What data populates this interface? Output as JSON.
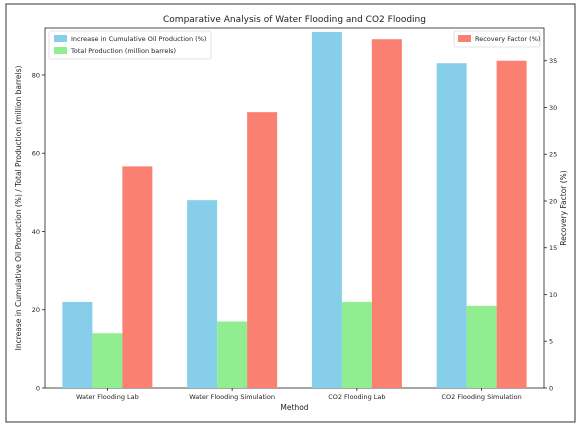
{
  "chart_data": {
    "type": "bar",
    "title": "Comparative Analysis of Water Flooding and CO2 Flooding",
    "xlabel": "Method",
    "ylabel_left": "Increase in Cumulative Oil Production (%) / Total Production (million barrels)",
    "ylabel_right": "Recovery Factor (%)",
    "categories": [
      "Water Flooding Lab",
      "Water Flooding Simulation",
      "CO2 Flooding Lab",
      "CO2 Flooding Simulation"
    ],
    "ylim_left": [
      0,
      92
    ],
    "yticks_left": [
      0,
      20,
      40,
      60,
      80
    ],
    "ylim_right": [
      0,
      38.5
    ],
    "yticks_right": [
      0,
      5,
      10,
      15,
      20,
      25,
      30,
      35
    ],
    "series": [
      {
        "name": "Increase in Cumulative Oil Production (%)",
        "axis": "left",
        "color": "#87ceeb",
        "values": [
          22,
          48,
          91,
          83
        ]
      },
      {
        "name": "Total Production (million barrels)",
        "axis": "left",
        "color": "#90ee90",
        "values": [
          14,
          17,
          22,
          21
        ]
      },
      {
        "name": "Recovery Factor (%)",
        "axis": "right",
        "color": "#fa8072",
        "values": [
          23.7,
          29.5,
          37.3,
          35.0
        ]
      }
    ],
    "legend_left": "top-left",
    "legend_right": "top-right",
    "grid": false
  }
}
